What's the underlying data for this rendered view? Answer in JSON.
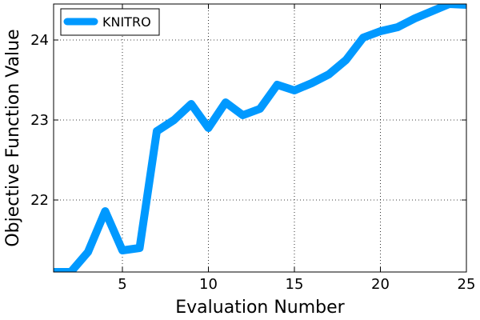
{
  "chart_data": {
    "type": "line",
    "title": "",
    "xlabel": "Evaluation Number",
    "ylabel": "Objective Function Value",
    "xlim": [
      1,
      25
    ],
    "ylim": [
      21.1,
      24.45
    ],
    "grid": true,
    "grid_style": "dotted",
    "legend_position": "top-left",
    "x_ticks": [
      5,
      10,
      15,
      20,
      25
    ],
    "y_ticks": [
      22,
      23,
      24
    ],
    "series": [
      {
        "name": "KNITRO",
        "color": "#0099ff",
        "x": [
          1,
          2,
          3,
          4,
          5,
          6,
          7,
          8,
          9,
          10,
          11,
          12,
          13,
          14,
          15,
          16,
          17,
          18,
          19,
          20,
          21,
          22,
          23,
          24,
          25
        ],
        "values": [
          21.1,
          21.1,
          21.35,
          21.86,
          21.37,
          21.4,
          22.86,
          23.0,
          23.2,
          22.9,
          23.22,
          23.06,
          23.14,
          23.44,
          23.37,
          23.46,
          23.57,
          23.75,
          24.03,
          24.11,
          24.16,
          24.27,
          24.36,
          24.45,
          24.44
        ]
      }
    ]
  }
}
